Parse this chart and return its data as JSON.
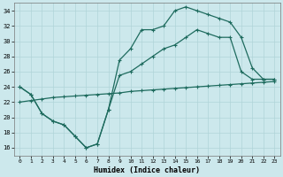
{
  "xlabel": "Humidex (Indice chaleur)",
  "bg_color": "#cce8ec",
  "grid_color": "#b0d4d8",
  "line_color": "#1e6b5e",
  "xlim": [
    -0.5,
    23.5
  ],
  "ylim": [
    15.0,
    35.0
  ],
  "xticks": [
    0,
    1,
    2,
    3,
    4,
    5,
    6,
    7,
    8,
    9,
    10,
    11,
    12,
    13,
    14,
    15,
    16,
    17,
    18,
    19,
    20,
    21,
    22,
    23
  ],
  "yticks": [
    16,
    18,
    20,
    22,
    24,
    26,
    28,
    30,
    32,
    34
  ],
  "line1_x": [
    0,
    1,
    2,
    3,
    4,
    5,
    6,
    7,
    8,
    9,
    10,
    11,
    12,
    13,
    14,
    15,
    16,
    17,
    18,
    19,
    20,
    21,
    22,
    23
  ],
  "line1_y": [
    24.0,
    23.0,
    20.5,
    19.5,
    19.0,
    17.5,
    16.0,
    16.5,
    21.0,
    27.5,
    29.0,
    31.5,
    31.5,
    32.0,
    34.0,
    34.5,
    34.0,
    33.5,
    33.0,
    32.5,
    30.5,
    26.5,
    25.0,
    25.0
  ],
  "line2_x": [
    0,
    1,
    2,
    3,
    4,
    5,
    6,
    7,
    8,
    9,
    10,
    11,
    12,
    13,
    14,
    15,
    16,
    17,
    18,
    19,
    20,
    21,
    22,
    23
  ],
  "line2_y": [
    24.0,
    23.0,
    20.5,
    19.5,
    19.0,
    17.5,
    16.0,
    16.5,
    21.0,
    25.5,
    26.0,
    27.0,
    28.0,
    29.0,
    29.5,
    30.5,
    31.5,
    31.0,
    30.5,
    30.5,
    26.0,
    25.0,
    25.0,
    25.0
  ],
  "line3_x": [
    0,
    1,
    2,
    3,
    4,
    5,
    6,
    7,
    8,
    9,
    10,
    11,
    12,
    13,
    14,
    15,
    16,
    17,
    18,
    19,
    20,
    21,
    22,
    23
  ],
  "line3_y": [
    22.0,
    22.2,
    22.4,
    22.6,
    22.7,
    22.8,
    22.9,
    23.0,
    23.1,
    23.2,
    23.4,
    23.5,
    23.6,
    23.7,
    23.8,
    23.9,
    24.0,
    24.1,
    24.2,
    24.3,
    24.4,
    24.5,
    24.6,
    24.7
  ]
}
